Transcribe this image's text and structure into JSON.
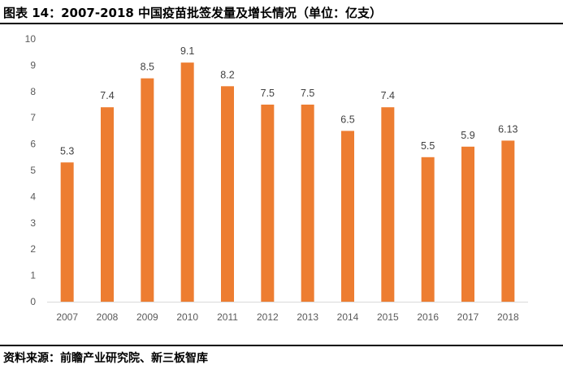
{
  "title": "图表 14：2007-2018 中国疫苗批签发量及增长情况（单位：亿支）",
  "source": "资料来源：前瞻产业研究院、新三板智库",
  "chart_data": {
    "type": "bar",
    "categories": [
      "2007",
      "2008",
      "2009",
      "2010",
      "2011",
      "2012",
      "2013",
      "2014",
      "2015",
      "2016",
      "2017",
      "2018"
    ],
    "values": [
      5.3,
      7.4,
      8.5,
      9.1,
      8.2,
      7.5,
      7.5,
      6.5,
      7.4,
      5.5,
      5.9,
      6.13
    ],
    "data_labels": [
      "5.3",
      "7.4",
      "8.5",
      "9.1",
      "8.2",
      "7.5",
      "7.5",
      "6.5",
      "7.4",
      "5.5",
      "5.9",
      "6.13"
    ],
    "ylim": [
      0,
      10
    ],
    "yticks": [
      0,
      1,
      2,
      3,
      4,
      5,
      6,
      7,
      8,
      9,
      10
    ],
    "grid": false,
    "legend": "none",
    "bar_color": "#ED7D31"
  }
}
